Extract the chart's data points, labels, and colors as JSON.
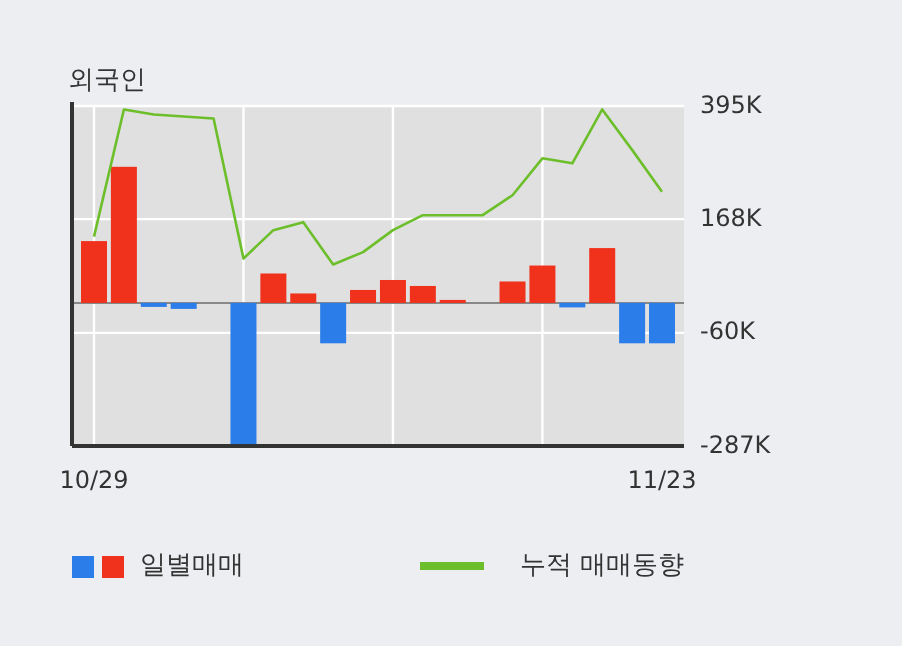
{
  "chart_data": {
    "type": "bar",
    "title": "외국인",
    "categories": [
      "10/29",
      null,
      null,
      null,
      null,
      null,
      null,
      null,
      null,
      null,
      null,
      null,
      null,
      null,
      null,
      null,
      null,
      null,
      null,
      "11/23"
    ],
    "series": [
      {
        "name": "일별매매",
        "values": [
          124,
          273,
          -8,
          -12,
          null,
          -285,
          59,
          19,
          -81,
          26,
          46,
          34,
          6,
          null,
          43,
          75,
          -9,
          110,
          -81,
          -81
        ],
        "colors": [
          "#f0311c",
          "#f0311c",
          "#2b7de9",
          "#2b7de9",
          null,
          "#2b7de9",
          "#f0311c",
          "#f0311c",
          "#2b7de9",
          "#f0311c",
          "#f0311c",
          "#f0311c",
          "#f0311c",
          null,
          "#f0311c",
          "#f0311c",
          "#2b7de9",
          "#f0311c",
          "#2b7de9",
          "#2b7de9"
        ]
      },
      {
        "type": "line",
        "name": "누적 매매동향",
        "color": "#6cbf2a",
        "values": [
          133,
          388,
          378,
          374,
          370,
          89,
          146,
          162,
          77,
          102,
          146,
          176,
          176,
          176,
          216,
          290,
          280,
          388,
          307,
          223
        ]
      }
    ],
    "ylim": [
      -287,
      395
    ],
    "yticks": [
      {
        "value": 395,
        "label": "395K"
      },
      {
        "value": 168,
        "label": "168K"
      },
      {
        "value": -60,
        "label": "-60K"
      },
      {
        "value": -287,
        "label": "-287K"
      }
    ],
    "grid": true,
    "legend": "bottom"
  }
}
